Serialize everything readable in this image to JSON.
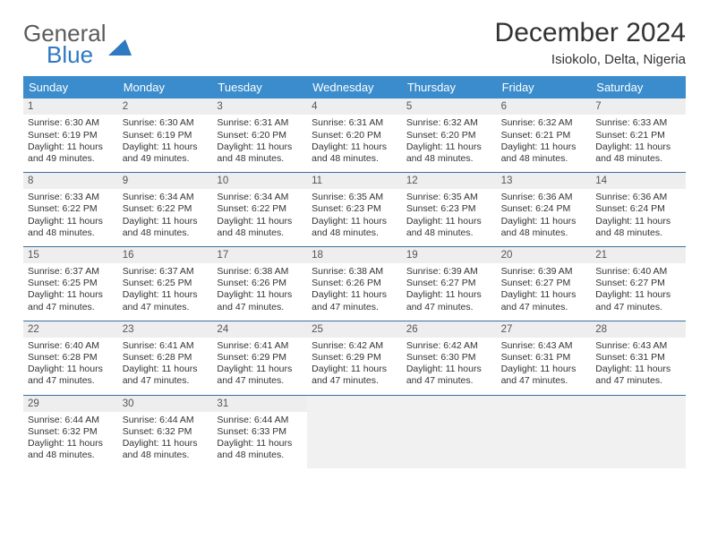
{
  "brand": {
    "line1": "General",
    "line2": "Blue"
  },
  "title": "December 2024",
  "subtitle": "Isiokolo, Delta, Nigeria",
  "colors": {
    "header_bg": "#3b8ccc",
    "header_text": "#ffffff",
    "week_border": "#3b6ea0",
    "daynum_bg": "#eeeeee",
    "text": "#333333",
    "empty_bg": "#f1f1f1",
    "logo_gray": "#5b5b5b",
    "logo_blue": "#2f78c2"
  },
  "weekdays": [
    "Sunday",
    "Monday",
    "Tuesday",
    "Wednesday",
    "Thursday",
    "Friday",
    "Saturday"
  ],
  "weeks": [
    [
      {
        "n": "1",
        "sr": "6:30 AM",
        "ss": "6:19 PM",
        "dl": "11 hours and 49 minutes."
      },
      {
        "n": "2",
        "sr": "6:30 AM",
        "ss": "6:19 PM",
        "dl": "11 hours and 49 minutes."
      },
      {
        "n": "3",
        "sr": "6:31 AM",
        "ss": "6:20 PM",
        "dl": "11 hours and 48 minutes."
      },
      {
        "n": "4",
        "sr": "6:31 AM",
        "ss": "6:20 PM",
        "dl": "11 hours and 48 minutes."
      },
      {
        "n": "5",
        "sr": "6:32 AM",
        "ss": "6:20 PM",
        "dl": "11 hours and 48 minutes."
      },
      {
        "n": "6",
        "sr": "6:32 AM",
        "ss": "6:21 PM",
        "dl": "11 hours and 48 minutes."
      },
      {
        "n": "7",
        "sr": "6:33 AM",
        "ss": "6:21 PM",
        "dl": "11 hours and 48 minutes."
      }
    ],
    [
      {
        "n": "8",
        "sr": "6:33 AM",
        "ss": "6:22 PM",
        "dl": "11 hours and 48 minutes."
      },
      {
        "n": "9",
        "sr": "6:34 AM",
        "ss": "6:22 PM",
        "dl": "11 hours and 48 minutes."
      },
      {
        "n": "10",
        "sr": "6:34 AM",
        "ss": "6:22 PM",
        "dl": "11 hours and 48 minutes."
      },
      {
        "n": "11",
        "sr": "6:35 AM",
        "ss": "6:23 PM",
        "dl": "11 hours and 48 minutes."
      },
      {
        "n": "12",
        "sr": "6:35 AM",
        "ss": "6:23 PM",
        "dl": "11 hours and 48 minutes."
      },
      {
        "n": "13",
        "sr": "6:36 AM",
        "ss": "6:24 PM",
        "dl": "11 hours and 48 minutes."
      },
      {
        "n": "14",
        "sr": "6:36 AM",
        "ss": "6:24 PM",
        "dl": "11 hours and 48 minutes."
      }
    ],
    [
      {
        "n": "15",
        "sr": "6:37 AM",
        "ss": "6:25 PM",
        "dl": "11 hours and 47 minutes."
      },
      {
        "n": "16",
        "sr": "6:37 AM",
        "ss": "6:25 PM",
        "dl": "11 hours and 47 minutes."
      },
      {
        "n": "17",
        "sr": "6:38 AM",
        "ss": "6:26 PM",
        "dl": "11 hours and 47 minutes."
      },
      {
        "n": "18",
        "sr": "6:38 AM",
        "ss": "6:26 PM",
        "dl": "11 hours and 47 minutes."
      },
      {
        "n": "19",
        "sr": "6:39 AM",
        "ss": "6:27 PM",
        "dl": "11 hours and 47 minutes."
      },
      {
        "n": "20",
        "sr": "6:39 AM",
        "ss": "6:27 PM",
        "dl": "11 hours and 47 minutes."
      },
      {
        "n": "21",
        "sr": "6:40 AM",
        "ss": "6:27 PM",
        "dl": "11 hours and 47 minutes."
      }
    ],
    [
      {
        "n": "22",
        "sr": "6:40 AM",
        "ss": "6:28 PM",
        "dl": "11 hours and 47 minutes."
      },
      {
        "n": "23",
        "sr": "6:41 AM",
        "ss": "6:28 PM",
        "dl": "11 hours and 47 minutes."
      },
      {
        "n": "24",
        "sr": "6:41 AM",
        "ss": "6:29 PM",
        "dl": "11 hours and 47 minutes."
      },
      {
        "n": "25",
        "sr": "6:42 AM",
        "ss": "6:29 PM",
        "dl": "11 hours and 47 minutes."
      },
      {
        "n": "26",
        "sr": "6:42 AM",
        "ss": "6:30 PM",
        "dl": "11 hours and 47 minutes."
      },
      {
        "n": "27",
        "sr": "6:43 AM",
        "ss": "6:31 PM",
        "dl": "11 hours and 47 minutes."
      },
      {
        "n": "28",
        "sr": "6:43 AM",
        "ss": "6:31 PM",
        "dl": "11 hours and 47 minutes."
      }
    ],
    [
      {
        "n": "29",
        "sr": "6:44 AM",
        "ss": "6:32 PM",
        "dl": "11 hours and 48 minutes."
      },
      {
        "n": "30",
        "sr": "6:44 AM",
        "ss": "6:32 PM",
        "dl": "11 hours and 48 minutes."
      },
      {
        "n": "31",
        "sr": "6:44 AM",
        "ss": "6:33 PM",
        "dl": "11 hours and 48 minutes."
      },
      null,
      null,
      null,
      null
    ]
  ],
  "labels": {
    "sunrise": "Sunrise:",
    "sunset": "Sunset:",
    "daylight": "Daylight:"
  }
}
